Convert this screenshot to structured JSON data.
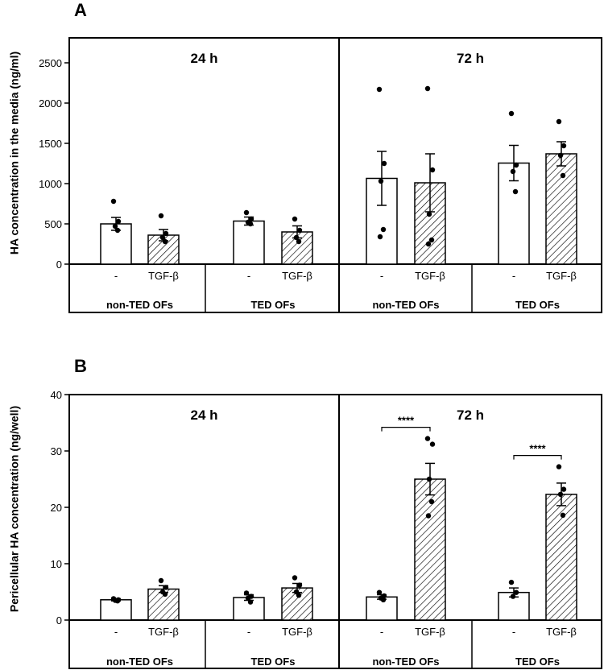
{
  "chart_data": [
    {
      "type": "bar",
      "panel_label": "A",
      "ylabel": "HA concentration in the media (ng/ml)",
      "ylim": [
        0,
        2500
      ],
      "yticks": [
        0,
        500,
        1000,
        1500,
        2000,
        2500
      ],
      "time_points": [
        "24 h",
        "72 h"
      ],
      "groups": [
        "non-TED OFs",
        "TED OFs"
      ],
      "treatments": [
        "-",
        "TGF-β"
      ],
      "bars": [
        {
          "time": "24 h",
          "group": "non-TED OFs",
          "treatment": "-",
          "mean": 500,
          "sem": 80,
          "points": [
            780,
            530,
            470,
            420
          ],
          "pattern": "open"
        },
        {
          "time": "24 h",
          "group": "non-TED OFs",
          "treatment": "TGF-β",
          "mean": 360,
          "sem": 70,
          "points": [
            600,
            380,
            330,
            280
          ],
          "pattern": "hatched"
        },
        {
          "time": "24 h",
          "group": "TED OFs",
          "treatment": "-",
          "mean": 535,
          "sem": 50,
          "points": [
            640,
            560,
            520,
            500
          ],
          "pattern": "open"
        },
        {
          "time": "24 h",
          "group": "TED OFs",
          "treatment": "TGF-β",
          "mean": 400,
          "sem": 75,
          "points": [
            560,
            420,
            330,
            280
          ],
          "pattern": "hatched"
        },
        {
          "time": "72 h",
          "group": "non-TED OFs",
          "treatment": "-",
          "mean": 1065,
          "sem": 335,
          "points": [
            2170,
            1250,
            1030,
            430,
            340
          ],
          "pattern": "open"
        },
        {
          "time": "72 h",
          "group": "non-TED OFs",
          "treatment": "TGF-β",
          "mean": 1010,
          "sem": 360,
          "points": [
            2180,
            1170,
            620,
            300,
            250
          ],
          "pattern": "hatched"
        },
        {
          "time": "72 h",
          "group": "TED OFs",
          "treatment": "-",
          "mean": 1255,
          "sem": 220,
          "points": [
            1870,
            1230,
            1150,
            900
          ],
          "pattern": "open"
        },
        {
          "time": "72 h",
          "group": "TED OFs",
          "treatment": "TGF-β",
          "mean": 1370,
          "sem": 150,
          "points": [
            1770,
            1470,
            1350,
            1100
          ],
          "pattern": "hatched"
        }
      ],
      "significance": []
    },
    {
      "type": "bar",
      "panel_label": "B",
      "ylabel": "Pericellular HA concentration (ng/well)",
      "ylim": [
        0,
        40
      ],
      "yticks": [
        0,
        10,
        20,
        30,
        40
      ],
      "time_points": [
        "24 h",
        "72 h"
      ],
      "groups": [
        "non-TED OFs",
        "TED OFs"
      ],
      "treatments": [
        "-",
        "TGF-β"
      ],
      "bars": [
        {
          "time": "24 h",
          "group": "non-TED OFs",
          "treatment": "-",
          "mean": 3.6,
          "sem": 0.2,
          "points": [
            3.8,
            3.6,
            3.5,
            3.4
          ],
          "pattern": "open"
        },
        {
          "time": "24 h",
          "group": "non-TED OFs",
          "treatment": "TGF-β",
          "mean": 5.5,
          "sem": 0.6,
          "points": [
            7.0,
            5.8,
            5.0,
            4.6
          ],
          "pattern": "hatched"
        },
        {
          "time": "24 h",
          "group": "TED OFs",
          "treatment": "-",
          "mean": 4.0,
          "sem": 0.5,
          "points": [
            4.8,
            4.2,
            3.9,
            3.2
          ],
          "pattern": "open"
        },
        {
          "time": "24 h",
          "group": "TED OFs",
          "treatment": "TGF-β",
          "mean": 5.7,
          "sem": 0.8,
          "points": [
            7.5,
            6.2,
            5.0,
            4.4
          ],
          "pattern": "hatched"
        },
        {
          "time": "72 h",
          "group": "non-TED OFs",
          "treatment": "-",
          "mean": 4.1,
          "sem": 0.4,
          "points": [
            4.9,
            4.3,
            3.9,
            3.6
          ],
          "pattern": "open"
        },
        {
          "time": "72 h",
          "group": "non-TED OFs",
          "treatment": "TGF-β",
          "mean": 25.0,
          "sem": 2.8,
          "points": [
            32.2,
            31.2,
            25.0,
            21.0,
            18.5
          ],
          "pattern": "hatched"
        },
        {
          "time": "72 h",
          "group": "TED OFs",
          "treatment": "-",
          "mean": 4.9,
          "sem": 0.8,
          "points": [
            6.7,
            4.9,
            4.2
          ],
          "pattern": "open"
        },
        {
          "time": "72 h",
          "group": "TED OFs",
          "treatment": "TGF-β",
          "mean": 22.3,
          "sem": 2.0,
          "points": [
            27.2,
            23.2,
            22.3,
            18.6
          ],
          "pattern": "hatched"
        }
      ],
      "significance": [
        {
          "time": "72 h",
          "group": "non-TED OFs",
          "label": "****"
        },
        {
          "time": "72 h",
          "group": "TED OFs",
          "label": "****"
        }
      ]
    }
  ]
}
